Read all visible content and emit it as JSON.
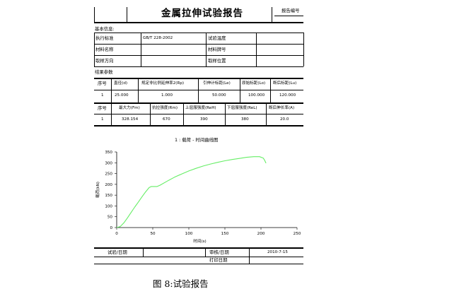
{
  "report": {
    "title": "金属拉伸试验报告",
    "report_no_label": "报告编号",
    "basic_info_label": "基本信息:",
    "standard_label": "执行标准",
    "standard_value": "GB/T 228-2002",
    "temp_label": "试验温度",
    "material_name_label": "材料名称",
    "material_no_label": "材料牌号",
    "sampling_dir_label": "取样方向",
    "sampling_pos_label": "取样位置",
    "results_label": "结果参数"
  },
  "results_table_1": {
    "headers": [
      "序号",
      "直径(d)",
      "规定非比例延伸率2(Rp)",
      "引伸计标距(Le)",
      "原始标距(Lo)",
      "断后标距(Lu)"
    ],
    "row": [
      "1",
      "25.000",
      "1.000",
      "50.000",
      "100.000",
      "120.000"
    ]
  },
  "results_table_2": {
    "headers": [
      "序号",
      "最大力(Fm)",
      "抗拉强度(Rm)",
      "上屈服强度(ReH)",
      "下屈服强度(ReL)",
      "断后伸长率(A)"
    ],
    "row": [
      "1",
      "328.154",
      "670",
      "390",
      "380",
      "20.0"
    ]
  },
  "chart_title": "1 : 载荷 - 时间曲线图",
  "chart_data": {
    "type": "line",
    "title": "1 : 载荷 - 时间曲线图",
    "xlabel": "时间(s)",
    "ylabel": "载荷(kN)",
    "xlim": [
      0,
      250
    ],
    "ylim": [
      0,
      350
    ],
    "xticks": [
      0,
      50,
      100,
      150,
      200,
      250
    ],
    "yticks": [
      0,
      50,
      100,
      150,
      200,
      250,
      300,
      350
    ],
    "line_color": "#66ee66",
    "series": [
      {
        "x": [
          0,
          5,
          10,
          15,
          20,
          25,
          30,
          35,
          40,
          45,
          48,
          52,
          56,
          60,
          70,
          80,
          90,
          100,
          110,
          120,
          130,
          140,
          150,
          160,
          170,
          180,
          190,
          198,
          203,
          205,
          207
        ],
        "y": [
          0,
          5,
          22,
          45,
          70,
          95,
          118,
          142,
          165,
          185,
          190,
          190,
          190,
          196,
          215,
          233,
          248,
          262,
          274,
          285,
          294,
          302,
          309,
          315,
          320,
          325,
          328,
          328,
          322,
          312,
          298
        ]
      }
    ]
  },
  "footer": {
    "test_date_label": "试验/日期",
    "review_date_label": "审核/日期",
    "review_date_value": "2010-7-15",
    "print_date_label": "打印日期"
  },
  "caption": "图 8:试验报告"
}
